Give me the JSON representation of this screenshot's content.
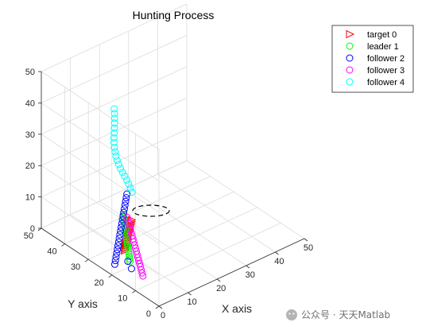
{
  "chart_data": {
    "type": "scatter3d",
    "title": "Hunting Process",
    "xlabel": "X axis",
    "ylabel": "Y axis",
    "zlabel": "",
    "xlim": [
      0,
      50
    ],
    "ylim": [
      0,
      50
    ],
    "zlim": [
      0,
      50
    ],
    "xticks": [
      "0",
      "10",
      "20",
      "30",
      "40",
      "50"
    ],
    "yticks": [
      "0",
      "10",
      "20",
      "30",
      "40",
      "50"
    ],
    "zticks": [
      "0",
      "10",
      "20",
      "30",
      "40",
      "50"
    ],
    "grid": true,
    "legend_position": "top-right",
    "series": [
      {
        "name": "target 0",
        "marker": "triangle-right",
        "color": "#ff0000",
        "x": [
          10.0,
          9.8,
          9.6,
          9.4,
          9.2,
          9.0,
          8.8,
          8.6,
          8.4,
          8.2,
          8.0,
          7.8,
          7.6,
          7.4,
          7.2,
          7.0,
          6.8,
          6.6,
          6.4,
          6.2
        ],
        "y": [
          27.0,
          26.6,
          26.2,
          25.8,
          25.4,
          25.0,
          24.6,
          24.2,
          23.8,
          23.4,
          23.0,
          22.6,
          22.2,
          21.8,
          21.4,
          21.0,
          20.6,
          20.2,
          19.8,
          19.4
        ],
        "z": [
          0.0,
          0.8,
          1.6,
          2.4,
          3.2,
          4.0,
          4.8,
          5.6,
          6.4,
          7.2,
          8.0,
          8.8,
          9.6,
          10.4,
          11.2,
          12.0,
          12.8,
          13.6,
          14.4,
          15.2
        ]
      },
      {
        "name": "leader 1",
        "marker": "circle",
        "color": "#00ff00",
        "x": [
          3.0,
          3.2,
          3.4,
          3.6,
          3.8,
          4.0,
          4.2,
          4.4,
          4.6,
          4.8,
          5.0,
          5.2,
          5.4,
          5.6,
          5.8,
          6.0,
          6.2,
          6.4,
          6.6,
          6.8
        ],
        "y": [
          16.0,
          16.4,
          16.8,
          17.2,
          17.6,
          18.0,
          18.4,
          18.8,
          19.2,
          19.6,
          20.0,
          20.4,
          20.8,
          21.2,
          21.6,
          22.0,
          22.4,
          22.8,
          23.2,
          23.6
        ],
        "z": [
          5.0,
          5.5,
          6.0,
          6.5,
          7.0,
          7.5,
          8.0,
          8.5,
          9.0,
          9.5,
          10.0,
          10.5,
          11.0,
          11.5,
          12.0,
          12.5,
          13.0,
          13.5,
          14.0,
          14.5
        ]
      },
      {
        "name": "follower 2",
        "marker": "circle",
        "color": "#0000ff",
        "x": [
          1.0,
          1.3,
          1.6,
          1.9,
          2.2,
          2.5,
          2.8,
          3.1,
          3.4,
          3.7,
          4.0,
          4.3,
          4.6,
          4.9,
          5.2,
          5.5,
          5.8,
          6.1,
          6.4,
          6.7
        ],
        "y": [
          20.0,
          20.1,
          20.2,
          20.3,
          20.4,
          20.5,
          20.6,
          20.7,
          20.8,
          20.9,
          21.0,
          21.1,
          21.2,
          21.3,
          21.4,
          21.5,
          21.6,
          21.7,
          21.8,
          21.9
        ],
        "z": [
          3.0,
          4.0,
          5.0,
          6.0,
          7.0,
          8.0,
          9.0,
          10.0,
          11.0,
          12.0,
          13.0,
          14.0,
          15.0,
          16.0,
          17.0,
          18.0,
          19.0,
          20.0,
          21.0,
          22.0
        ]
      },
      {
        "name": "follower 3",
        "marker": "circle",
        "color": "#ff00ff",
        "x": [
          5.0,
          5.2,
          5.4,
          5.6,
          5.8,
          6.0,
          6.2,
          6.4,
          6.6,
          6.8,
          7.0,
          7.2,
          7.4,
          7.6,
          7.8,
          8.0,
          8.2,
          8.4,
          8.6,
          8.8
        ],
        "y": [
          13.0,
          13.6,
          14.2,
          14.8,
          15.4,
          16.0,
          16.6,
          17.2,
          17.8,
          18.4,
          19.0,
          19.6,
          20.2,
          20.8,
          21.4,
          22.0,
          22.6,
          23.2,
          23.8,
          24.4
        ],
        "z": [
          1.0,
          1.6,
          2.2,
          2.8,
          3.4,
          4.0,
          4.6,
          5.2,
          5.8,
          6.4,
          7.0,
          7.6,
          8.2,
          8.8,
          9.4,
          10.0,
          10.6,
          11.2,
          11.8,
          12.4
        ]
      },
      {
        "name": "follower 4",
        "marker": "circle",
        "color": "#00ffff",
        "x": [
          15.0,
          14.8,
          14.5,
          14.2,
          13.8,
          13.4,
          13.0,
          12.7,
          12.5,
          12.4,
          12.4,
          12.5,
          12.7,
          13.0,
          13.4,
          13.8,
          14.2,
          14.5,
          14.8,
          15.0
        ],
        "y": [
          30.0,
          30.4,
          30.8,
          31.2,
          31.6,
          32.0,
          32.4,
          32.8,
          33.2,
          33.6,
          34.0,
          34.4,
          34.8,
          35.2,
          35.6,
          36.0,
          36.4,
          36.8,
          37.2,
          37.6
        ],
        "z": [
          15.0,
          16.2,
          17.4,
          18.6,
          19.8,
          21.0,
          22.2,
          23.4,
          24.6,
          25.8,
          27.0,
          28.2,
          29.4,
          30.6,
          31.8,
          33.0,
          34.2,
          35.4,
          36.6,
          37.8
        ]
      },
      {
        "name": "",
        "marker": "circle",
        "color": "#0000ff",
        "x": [
          3.5,
          5.5
        ],
        "y": [
          16.0,
          20.0
        ],
        "z": [
          2.5,
          2.0
        ]
      }
    ]
  },
  "watermark": {
    "text": "公众号 · 天天Matlab"
  }
}
